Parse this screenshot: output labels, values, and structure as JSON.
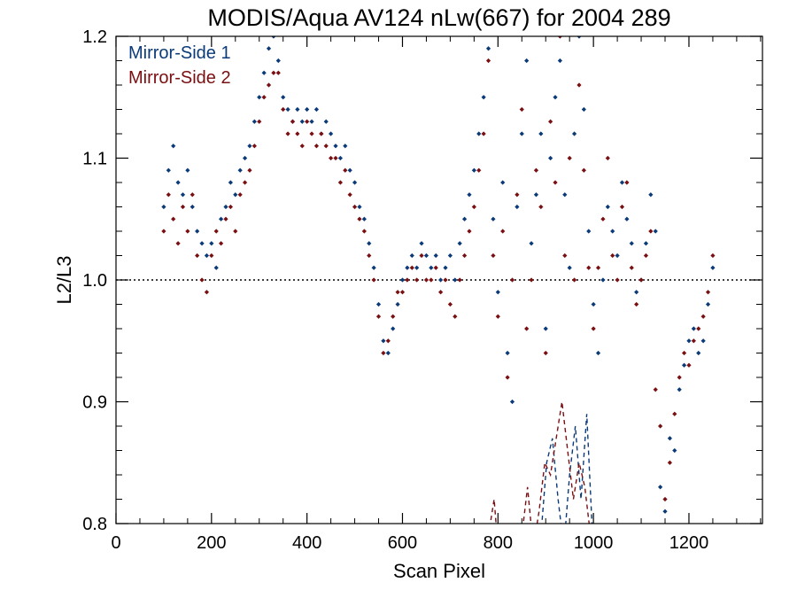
{
  "chart_data": {
    "type": "scatter",
    "title": "MODIS/Aqua AV124 nLw(667) for 2004 289",
    "xlabel": "Scan Pixel",
    "ylabel": "L2/L3",
    "xlim": [
      0,
      1354
    ],
    "ylim": [
      0.8,
      1.2
    ],
    "x_ticks": [
      0,
      200,
      400,
      600,
      800,
      1000,
      1200
    ],
    "x_tick_labels": [
      "0",
      "200",
      "400",
      "600",
      "800",
      "1000",
      "1200"
    ],
    "y_ticks": [
      0.8,
      0.9,
      1.0,
      1.1,
      1.2
    ],
    "y_tick_labels": [
      "0.8",
      "0.9",
      "1.0",
      "1.1",
      "1.2"
    ],
    "reference_line": {
      "y": 1.0,
      "style": "dotted"
    },
    "legend_position": "top-left",
    "series": [
      {
        "name": "Mirror-Side 1",
        "color": "#0b3a78",
        "marker": "diamond",
        "points": [
          [
            100,
            1.06
          ],
          [
            110,
            1.09
          ],
          [
            120,
            1.11
          ],
          [
            130,
            1.08
          ],
          [
            140,
            1.07
          ],
          [
            150,
            1.09
          ],
          [
            160,
            1.06
          ],
          [
            170,
            1.04
          ],
          [
            180,
            1.03
          ],
          [
            190,
            1.02
          ],
          [
            200,
            1.03
          ],
          [
            210,
            1.01
          ],
          [
            220,
            1.05
          ],
          [
            230,
            1.06
          ],
          [
            240,
            1.08
          ],
          [
            250,
            1.07
          ],
          [
            260,
            1.09
          ],
          [
            270,
            1.1
          ],
          [
            280,
            1.11
          ],
          [
            290,
            1.13
          ],
          [
            300,
            1.15
          ],
          [
            310,
            1.17
          ],
          [
            320,
            1.19
          ],
          [
            330,
            1.2
          ],
          [
            340,
            1.18
          ],
          [
            350,
            1.15
          ],
          [
            360,
            1.14
          ],
          [
            370,
            1.13
          ],
          [
            380,
            1.14
          ],
          [
            390,
            1.13
          ],
          [
            400,
            1.14
          ],
          [
            410,
            1.13
          ],
          [
            420,
            1.14
          ],
          [
            430,
            1.12
          ],
          [
            440,
            1.13
          ],
          [
            450,
            1.12
          ],
          [
            460,
            1.11
          ],
          [
            470,
            1.1
          ],
          [
            480,
            1.11
          ],
          [
            490,
            1.09
          ],
          [
            500,
            1.08
          ],
          [
            510,
            1.06
          ],
          [
            520,
            1.05
          ],
          [
            530,
            1.03
          ],
          [
            540,
            1.01
          ],
          [
            550,
            0.98
          ],
          [
            560,
            0.95
          ],
          [
            570,
            0.94
          ],
          [
            580,
            0.96
          ],
          [
            590,
            0.98
          ],
          [
            600,
            1.0
          ],
          [
            610,
            1.01
          ],
          [
            620,
            1.02
          ],
          [
            630,
            1.01
          ],
          [
            640,
            1.03
          ],
          [
            650,
            1.02
          ],
          [
            660,
            1.01
          ],
          [
            670,
            1.02
          ],
          [
            680,
            1.0
          ],
          [
            690,
            1.01
          ],
          [
            700,
            1.02
          ],
          [
            710,
            1.0
          ],
          [
            720,
            1.03
          ],
          [
            730,
            1.05
          ],
          [
            740,
            1.07
          ],
          [
            750,
            1.09
          ],
          [
            760,
            1.12
          ],
          [
            770,
            1.15
          ],
          [
            780,
            1.19
          ],
          [
            790,
            1.05
          ],
          [
            800,
            0.99
          ],
          [
            810,
            1.08
          ],
          [
            820,
            0.94
          ],
          [
            830,
            0.9
          ],
          [
            840,
            1.06
          ],
          [
            850,
            1.12
          ],
          [
            860,
            1.18
          ],
          [
            870,
            1.03
          ],
          [
            880,
            1.07
          ],
          [
            890,
            1.12
          ],
          [
            900,
            0.96
          ],
          [
            910,
            1.1
          ],
          [
            920,
            1.15
          ],
          [
            930,
            1.18
          ],
          [
            940,
            1.07
          ],
          [
            950,
            1.01
          ],
          [
            960,
            1.12
          ],
          [
            970,
            1.2
          ],
          [
            980,
            1.14
          ],
          [
            990,
            1.04
          ],
          [
            1000,
            0.98
          ],
          [
            1010,
            0.94
          ],
          [
            1020,
            1.0
          ],
          [
            1030,
            1.06
          ],
          [
            1040,
            1.04
          ],
          [
            1050,
            1.02
          ],
          [
            1060,
            1.08
          ],
          [
            1070,
            1.05
          ],
          [
            1080,
            1.03
          ],
          [
            1090,
            0.99
          ],
          [
            1100,
            1.0
          ],
          [
            1110,
            1.03
          ],
          [
            1120,
            1.07
          ],
          [
            1130,
            1.04
          ],
          [
            1140,
            0.83
          ],
          [
            1150,
            0.81
          ],
          [
            1160,
            0.87
          ],
          [
            1170,
            0.86
          ],
          [
            1180,
            0.91
          ],
          [
            1190,
            0.93
          ],
          [
            1200,
            0.95
          ],
          [
            1210,
            0.96
          ],
          [
            1220,
            0.94
          ],
          [
            1230,
            0.95
          ],
          [
            1240,
            0.98
          ],
          [
            1250,
            1.01
          ]
        ],
        "dashed_line": [
          [
            890,
            0.79
          ],
          [
            902,
            0.85
          ],
          [
            914,
            0.87
          ],
          [
            926,
            0.82
          ],
          [
            938,
            0.78
          ],
          [
            950,
            0.84
          ],
          [
            962,
            0.88
          ],
          [
            974,
            0.82
          ],
          [
            986,
            0.89
          ],
          [
            998,
            0.79
          ]
        ]
      },
      {
        "name": "Mirror-Side 2",
        "color": "#7a0f12",
        "marker": "diamond",
        "points": [
          [
            100,
            1.04
          ],
          [
            110,
            1.07
          ],
          [
            120,
            1.05
          ],
          [
            130,
            1.03
          ],
          [
            140,
            1.06
          ],
          [
            150,
            1.04
          ],
          [
            160,
            1.07
          ],
          [
            170,
            1.02
          ],
          [
            180,
            1.0
          ],
          [
            190,
            0.99
          ],
          [
            200,
            1.02
          ],
          [
            210,
            1.04
          ],
          [
            220,
            1.03
          ],
          [
            230,
            1.05
          ],
          [
            240,
            1.06
          ],
          [
            250,
            1.04
          ],
          [
            260,
            1.07
          ],
          [
            270,
            1.08
          ],
          [
            280,
            1.09
          ],
          [
            290,
            1.11
          ],
          [
            300,
            1.13
          ],
          [
            310,
            1.15
          ],
          [
            320,
            1.16
          ],
          [
            330,
            1.17
          ],
          [
            340,
            1.17
          ],
          [
            350,
            1.14
          ],
          [
            360,
            1.12
          ],
          [
            370,
            1.13
          ],
          [
            380,
            1.12
          ],
          [
            390,
            1.11
          ],
          [
            400,
            1.13
          ],
          [
            410,
            1.12
          ],
          [
            420,
            1.11
          ],
          [
            430,
            1.12
          ],
          [
            440,
            1.11
          ],
          [
            450,
            1.1
          ],
          [
            460,
            1.1
          ],
          [
            470,
            1.08
          ],
          [
            480,
            1.09
          ],
          [
            490,
            1.07
          ],
          [
            500,
            1.06
          ],
          [
            510,
            1.05
          ],
          [
            520,
            1.04
          ],
          [
            530,
            1.02
          ],
          [
            540,
            1.0
          ],
          [
            550,
            0.97
          ],
          [
            560,
            0.94
          ],
          [
            570,
            0.95
          ],
          [
            580,
            0.97
          ],
          [
            590,
            0.99
          ],
          [
            600,
            0.99
          ],
          [
            610,
            1.0
          ],
          [
            620,
            1.01
          ],
          [
            630,
            1.0
          ],
          [
            640,
            1.02
          ],
          [
            650,
            1.0
          ],
          [
            660,
            1.0
          ],
          [
            670,
            1.01
          ],
          [
            680,
            0.99
          ],
          [
            690,
            1.0
          ],
          [
            700,
            0.98
          ],
          [
            710,
            0.97
          ],
          [
            720,
            1.0
          ],
          [
            730,
            1.02
          ],
          [
            740,
            1.04
          ],
          [
            750,
            1.06
          ],
          [
            760,
            1.09
          ],
          [
            770,
            1.12
          ],
          [
            780,
            1.18
          ],
          [
            790,
            1.02
          ],
          [
            800,
            0.97
          ],
          [
            810,
            1.04
          ],
          [
            820,
            0.92
          ],
          [
            830,
            1.0
          ],
          [
            840,
            1.07
          ],
          [
            850,
            1.14
          ],
          [
            860,
            0.96
          ],
          [
            870,
            1.0
          ],
          [
            880,
            1.09
          ],
          [
            890,
            1.06
          ],
          [
            900,
            0.94
          ],
          [
            910,
            1.13
          ],
          [
            920,
            1.08
          ],
          [
            930,
            1.2
          ],
          [
            940,
            1.02
          ],
          [
            950,
            1.1
          ],
          [
            960,
            1.0
          ],
          [
            970,
            1.16
          ],
          [
            980,
            1.09
          ],
          [
            990,
            1.01
          ],
          [
            1000,
            0.96
          ],
          [
            1010,
            1.01
          ],
          [
            1020,
            1.05
          ],
          [
            1030,
            1.1
          ],
          [
            1040,
            1.02
          ],
          [
            1050,
            1.0
          ],
          [
            1060,
            1.06
          ],
          [
            1070,
            1.08
          ],
          [
            1080,
            1.01
          ],
          [
            1090,
            0.98
          ],
          [
            1100,
            1.0
          ],
          [
            1110,
            1.02
          ],
          [
            1120,
            1.04
          ],
          [
            1130,
            0.91
          ],
          [
            1140,
            0.88
          ],
          [
            1150,
            0.82
          ],
          [
            1160,
            0.85
          ],
          [
            1170,
            0.89
          ],
          [
            1180,
            0.92
          ],
          [
            1190,
            0.94
          ],
          [
            1200,
            0.93
          ],
          [
            1210,
            0.95
          ],
          [
            1220,
            0.96
          ],
          [
            1230,
            0.97
          ],
          [
            1240,
            0.99
          ],
          [
            1250,
            1.02
          ]
        ],
        "dashed_line": [
          [
            780,
            0.79
          ],
          [
            792,
            0.82
          ],
          [
            800,
            0.78
          ],
          [
            850,
            0.79
          ],
          [
            862,
            0.83
          ],
          [
            874,
            0.78
          ],
          [
            886,
            0.81
          ],
          [
            898,
            0.85
          ],
          [
            910,
            0.84
          ],
          [
            922,
            0.87
          ],
          [
            934,
            0.9
          ],
          [
            946,
            0.86
          ],
          [
            958,
            0.82
          ],
          [
            970,
            0.85
          ],
          [
            982,
            0.83
          ],
          [
            994,
            0.79
          ]
        ]
      }
    ]
  }
}
